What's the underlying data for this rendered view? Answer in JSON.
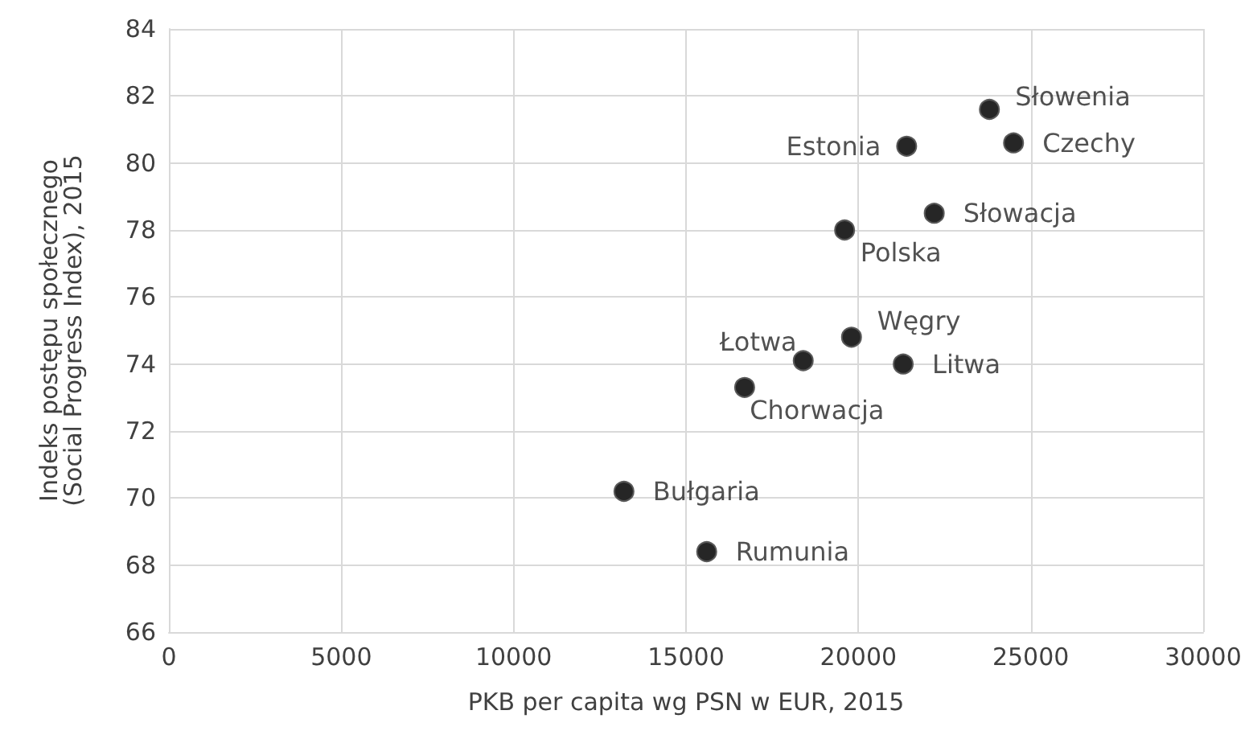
{
  "chart_data": {
    "type": "scatter",
    "xlabel": "PKB per capita wg PSN w EUR, 2015",
    "ylabel": "Indeks postępu społecznego\n(Social Progress Index), 2015",
    "x": [
      23800,
      24500,
      21400,
      22200,
      19600,
      19800,
      18400,
      21300,
      16700,
      13200,
      15600
    ],
    "values": [
      81.6,
      80.6,
      80.5,
      78.5,
      78.0,
      74.8,
      74.1,
      74.0,
      73.3,
      70.2,
      68.4
    ],
    "color": "#262626",
    "marker": "circle",
    "xlim": [
      0,
      30000
    ],
    "xticks": [
      0,
      5000,
      10000,
      15000,
      20000,
      25000,
      30000
    ],
    "ylim": [
      66,
      84
    ],
    "yticks": [
      66,
      68,
      70,
      72,
      74,
      76,
      78,
      80,
      82,
      84
    ],
    "grid": true,
    "annotations": [
      {
        "text": "Słowenia",
        "x": 23800,
        "y": 81.6
      },
      {
        "text": "Czechy",
        "x": 24500,
        "y": 80.6
      },
      {
        "text": "Estonia",
        "x": 21400,
        "y": 80.5
      },
      {
        "text": "Słowacja",
        "x": 22200,
        "y": 78.5
      },
      {
        "text": "Polska",
        "x": 19600,
        "y": 78.0
      },
      {
        "text": "Węgry",
        "x": 19800,
        "y": 74.8
      },
      {
        "text": "Łotwa",
        "x": 18400,
        "y": 74.1
      },
      {
        "text": "Litwa",
        "x": 21300,
        "y": 74.0
      },
      {
        "text": "Chorwacja",
        "x": 16700,
        "y": 73.3
      },
      {
        "text": "Bułgaria",
        "x": 13200,
        "y": 70.2
      },
      {
        "text": "Rumunia",
        "x": 15600,
        "y": 68.4
      }
    ]
  }
}
